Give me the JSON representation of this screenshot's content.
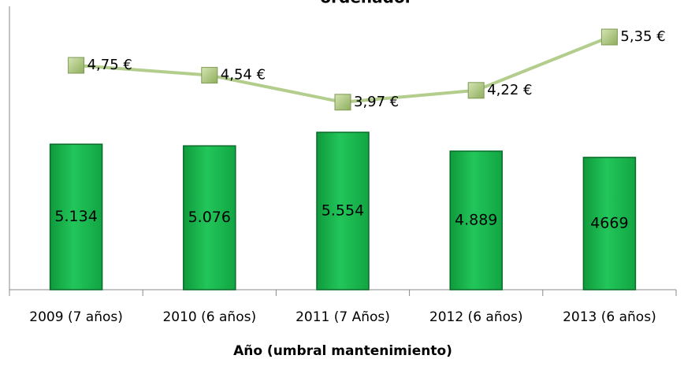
{
  "chart_data": {
    "type": "bar_line",
    "title": "ordenador",
    "x_label": "Año (umbral mantenimiento)",
    "categories": [
      "2009 (7 años)",
      "2010 (6 años)",
      "2011 (7 Años)",
      "2012 (6 años)",
      "2013 (6 años)"
    ],
    "series": [
      {
        "type": "bar",
        "color": "#1fbf55",
        "values": [
          5134,
          5076,
          5554,
          4889,
          4669
        ],
        "value_labels": [
          "5.134",
          "5.076",
          "5.554",
          "4.889",
          "4669"
        ]
      },
      {
        "type": "line",
        "axis": "y2",
        "color": "#b3cd8c",
        "values": [
          4.75,
          4.54,
          3.97,
          4.22,
          5.35
        ],
        "value_labels": [
          "4,75 €",
          "4,54 €",
          "3,97 €",
          "4,22 €",
          "5,35 €"
        ]
      }
    ],
    "ylim": [
      0,
      10000
    ],
    "y2lim": [
      0,
      6
    ]
  }
}
